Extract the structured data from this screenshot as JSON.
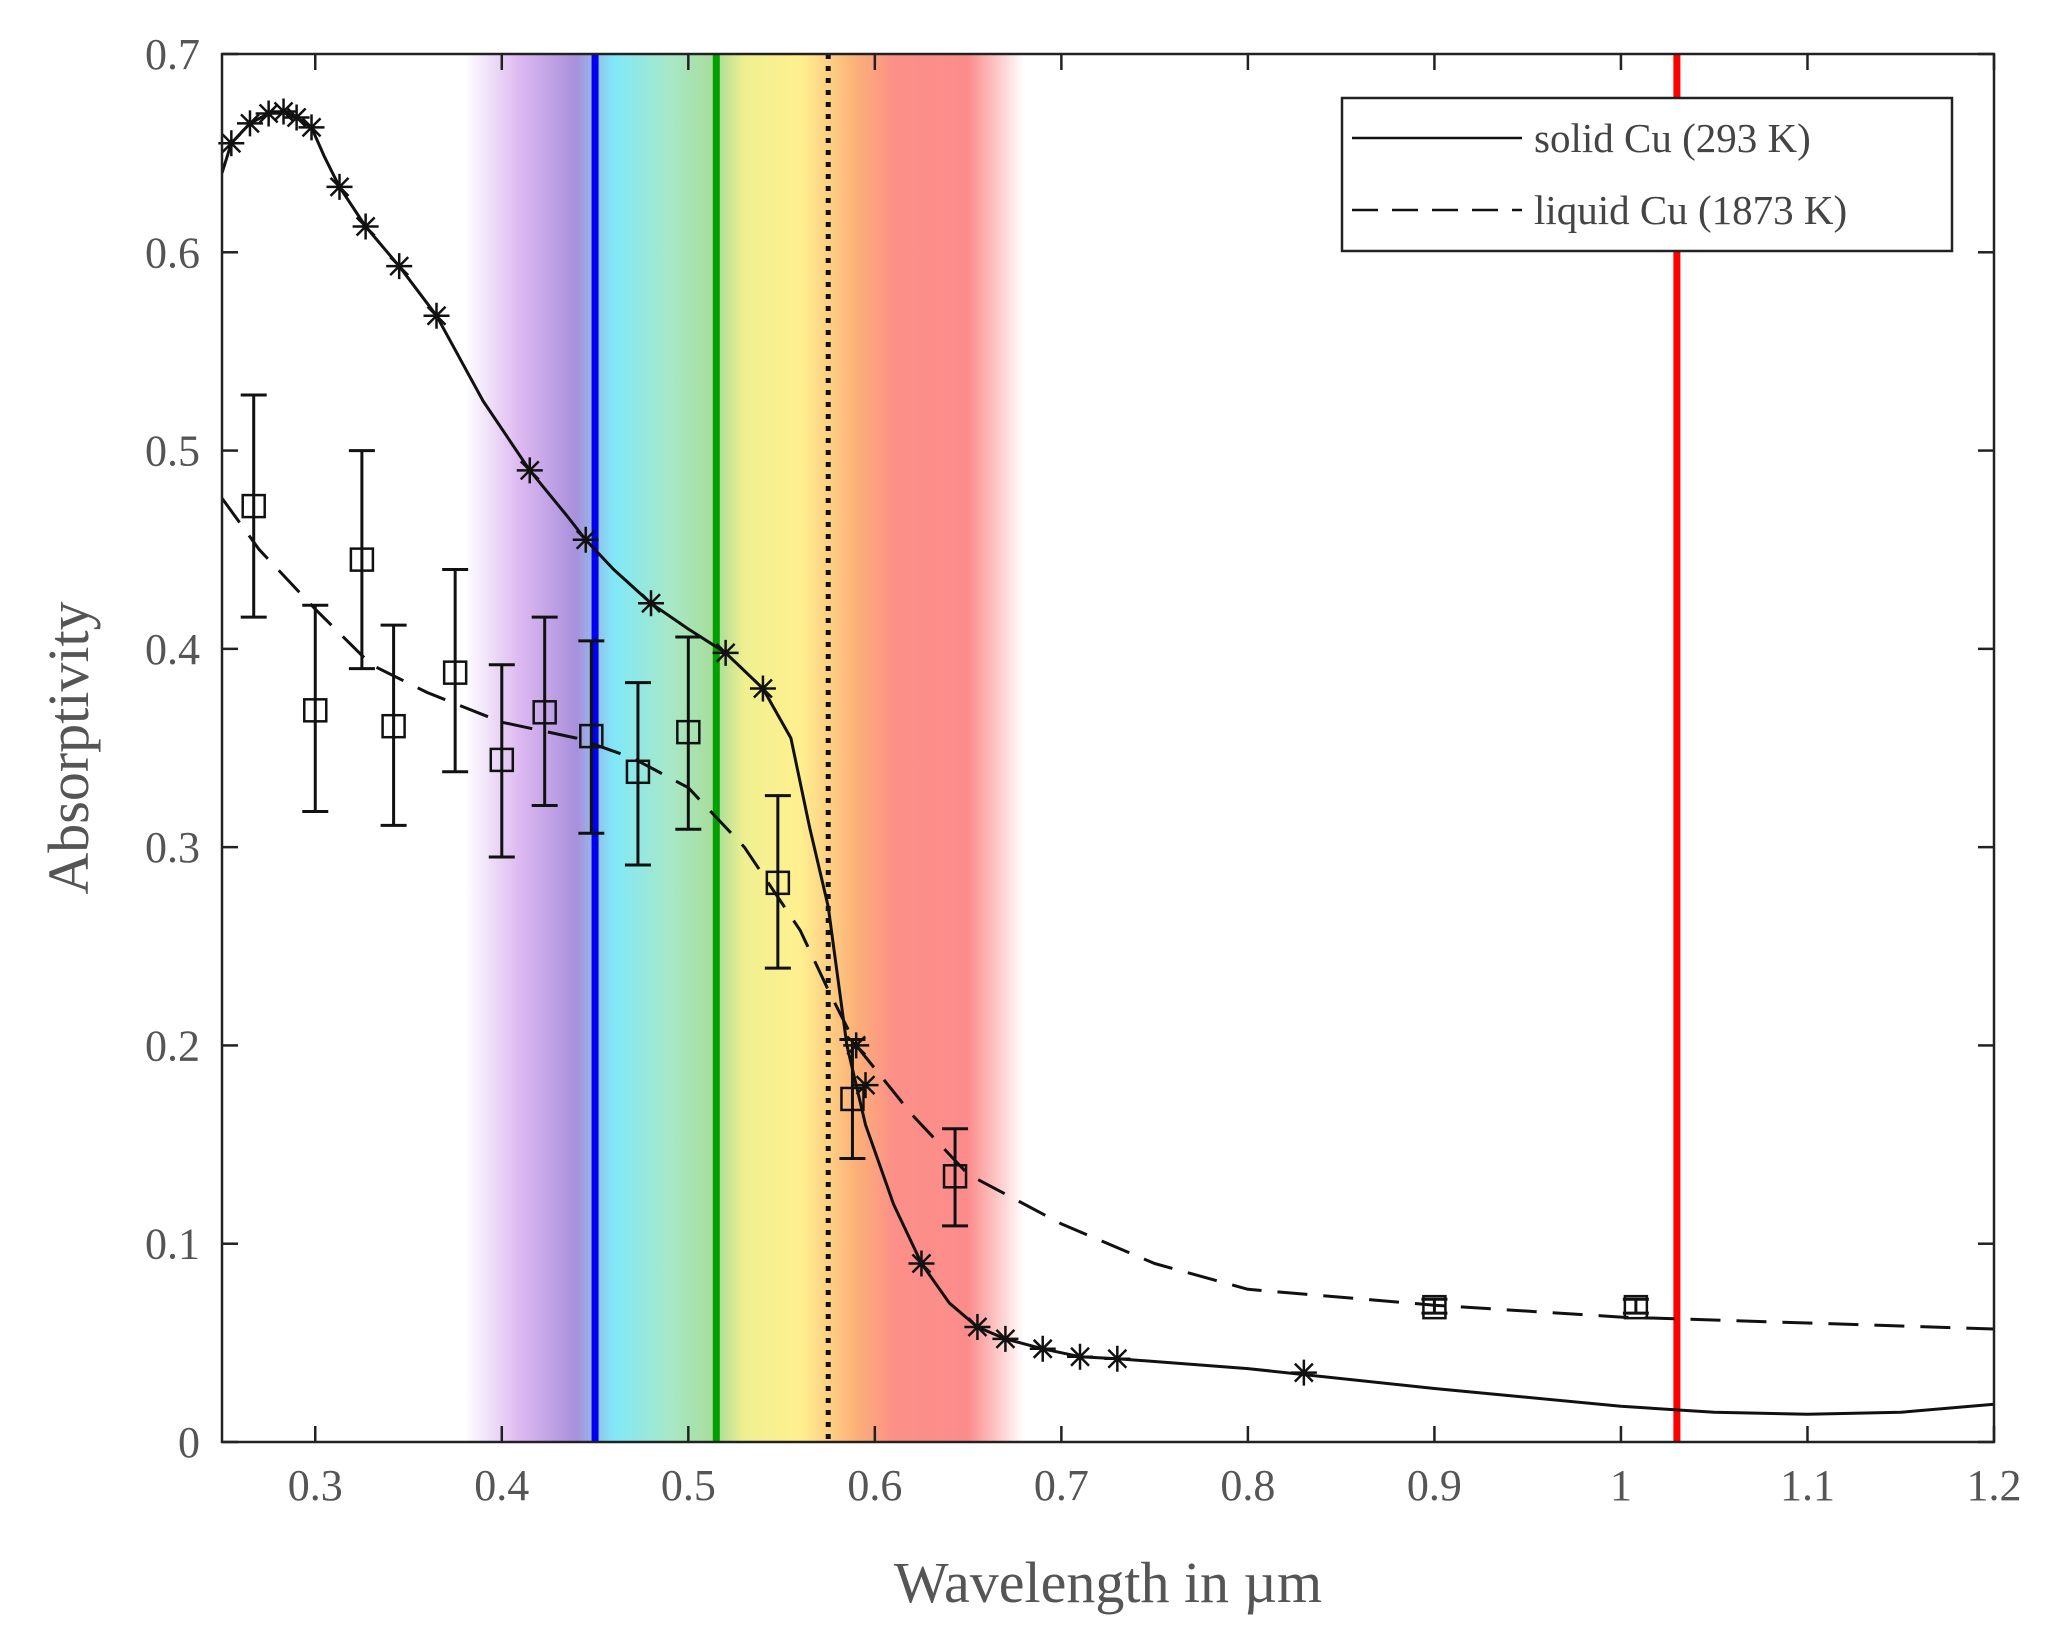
{
  "chart_data": {
    "type": "line",
    "xlabel": "Wavelength in µm",
    "ylabel": "Absorptivity",
    "xlim": [
      0.25,
      1.2
    ],
    "ylim": [
      0,
      0.7
    ],
    "xticks": [
      0.3,
      0.4,
      0.5,
      0.6,
      0.7,
      0.8,
      0.9,
      1,
      1.1,
      1.2
    ],
    "xtick_labels": [
      "0.3",
      "0.4",
      "0.5",
      "0.6",
      "0.7",
      "0.8",
      "0.9",
      "1",
      "1.1",
      "1.2"
    ],
    "yticks": [
      0,
      0.1,
      0.2,
      0.3,
      0.4,
      0.5,
      0.6,
      0.7
    ],
    "ytick_labels": [
      "0",
      "0.1",
      "0.2",
      "0.3",
      "0.4",
      "0.5",
      "0.6",
      "0.7"
    ],
    "legend": {
      "position": "top-right",
      "entries": [
        {
          "label": "solid Cu (293 K)",
          "style": "solid"
        },
        {
          "label": "liquid Cu (1873 K)",
          "style": "dashed"
        }
      ]
    },
    "spectrum_band": {
      "from": 0.38,
      "to": 0.68,
      "stops": [
        {
          "x": 0.38,
          "color": "#ffffff"
        },
        {
          "x": 0.41,
          "color": "#dcb8f0"
        },
        {
          "x": 0.44,
          "color": "#a890dc"
        },
        {
          "x": 0.46,
          "color": "#80e8f8"
        },
        {
          "x": 0.49,
          "color": "#a8e8c8"
        },
        {
          "x": 0.515,
          "color": "#a8dc98"
        },
        {
          "x": 0.53,
          "color": "#f0f090"
        },
        {
          "x": 0.56,
          "color": "#fff090"
        },
        {
          "x": 0.59,
          "color": "#fcb078"
        },
        {
          "x": 0.61,
          "color": "#fc9088"
        },
        {
          "x": 0.65,
          "color": "#fc8c8c"
        },
        {
          "x": 0.68,
          "color": "#ffffff"
        }
      ]
    },
    "vertical_lines": [
      {
        "x": 0.45,
        "color": "#0000ee",
        "style": "solid"
      },
      {
        "x": 0.515,
        "color": "#00a000",
        "style": "solid"
      },
      {
        "x": 0.575,
        "color": "#111111",
        "style": "dotted"
      },
      {
        "x": 1.03,
        "color": "#ff0000",
        "style": "solid"
      }
    ],
    "series": [
      {
        "name": "solid Cu (293 K)",
        "style": "solid",
        "x": [
          0.25,
          0.255,
          0.265,
          0.275,
          0.283,
          0.29,
          0.298,
          0.305,
          0.313,
          0.327,
          0.345,
          0.365,
          0.39,
          0.415,
          0.435,
          0.445,
          0.46,
          0.48,
          0.5,
          0.52,
          0.54,
          0.555,
          0.565,
          0.575,
          0.585,
          0.595,
          0.61,
          0.625,
          0.64,
          0.655,
          0.67,
          0.69,
          0.71,
          0.73,
          0.8,
          0.9,
          1.0,
          1.05,
          1.1,
          1.15,
          1.2
        ],
        "y": [
          0.64,
          0.655,
          0.665,
          0.67,
          0.671,
          0.668,
          0.663,
          0.648,
          0.633,
          0.613,
          0.593,
          0.568,
          0.525,
          0.49,
          0.467,
          0.455,
          0.44,
          0.423,
          0.41,
          0.398,
          0.38,
          0.355,
          0.31,
          0.27,
          0.2,
          0.16,
          0.12,
          0.09,
          0.07,
          0.058,
          0.052,
          0.047,
          0.043,
          0.042,
          0.037,
          0.027,
          0.018,
          0.015,
          0.014,
          0.015,
          0.019
        ]
      },
      {
        "name": "liquid Cu (1873 K)",
        "style": "dashed",
        "x": [
          0.25,
          0.27,
          0.3,
          0.33,
          0.36,
          0.4,
          0.44,
          0.47,
          0.5,
          0.53,
          0.56,
          0.575,
          0.59,
          0.62,
          0.65,
          0.7,
          0.75,
          0.8,
          0.9,
          1.0,
          1.1,
          1.2
        ],
        "y": [
          0.476,
          0.45,
          0.42,
          0.392,
          0.378,
          0.363,
          0.355,
          0.345,
          0.33,
          0.3,
          0.258,
          0.228,
          0.2,
          0.165,
          0.135,
          0.11,
          0.09,
          0.077,
          0.069,
          0.063,
          0.06,
          0.057
        ]
      }
    ],
    "solid_markers": {
      "x": [
        0.255,
        0.265,
        0.275,
        0.283,
        0.29,
        0.298,
        0.313,
        0.327,
        0.345,
        0.365,
        0.415,
        0.445,
        0.48,
        0.52,
        0.54,
        0.59,
        0.595,
        0.625,
        0.655,
        0.67,
        0.69,
        0.71,
        0.73,
        0.83
      ],
      "y": [
        0.655,
        0.665,
        0.67,
        0.671,
        0.668,
        0.663,
        0.633,
        0.613,
        0.593,
        0.568,
        0.49,
        0.455,
        0.423,
        0.398,
        0.38,
        0.2,
        0.18,
        0.09,
        0.058,
        0.052,
        0.047,
        0.043,
        0.042,
        0.035
      ]
    },
    "measured_points": {
      "x": [
        0.267,
        0.3,
        0.325,
        0.342,
        0.375,
        0.4,
        0.423,
        0.448,
        0.473,
        0.5,
        0.548,
        0.588,
        0.643,
        0.9,
        1.008
      ],
      "y": [
        0.472,
        0.369,
        0.445,
        0.361,
        0.388,
        0.344,
        0.368,
        0.356,
        0.338,
        0.358,
        0.282,
        0.173,
        0.134,
        0.068,
        0.068
      ],
      "err_low": [
        0.416,
        0.318,
        0.39,
        0.311,
        0.338,
        0.295,
        0.321,
        0.307,
        0.291,
        0.309,
        0.239,
        0.143,
        0.109,
        0.065,
        0.065
      ],
      "err_high": [
        0.528,
        0.422,
        0.5,
        0.412,
        0.44,
        0.392,
        0.416,
        0.404,
        0.383,
        0.406,
        0.326,
        0.203,
        0.158,
        0.072,
        0.072
      ]
    }
  }
}
